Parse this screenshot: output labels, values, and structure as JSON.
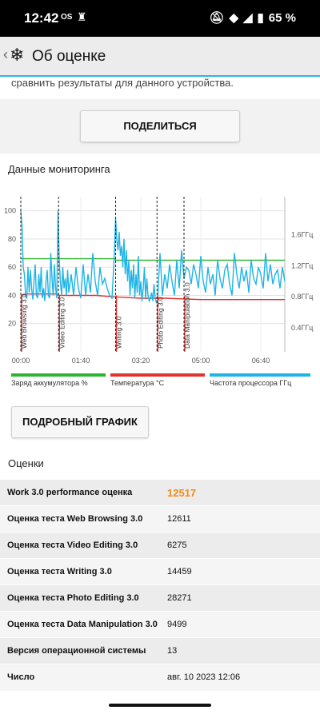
{
  "statusbar": {
    "time": "12:42",
    "os": "OS",
    "battery": "65 %"
  },
  "appbar": {
    "back": "‹",
    "logo": "❄",
    "title": "Об оценке"
  },
  "intro": "сравнить результаты для данного устройства.",
  "share_label": "ПОДЕЛИТЬСЯ",
  "monitoring_title": "Данные мониторинга",
  "chart_data": {
    "type": "line",
    "x_ticks": [
      "00:00",
      "01:40",
      "03:20",
      "05:00",
      "06:40"
    ],
    "y_left_ticks": [
      20,
      40,
      60,
      80,
      100
    ],
    "y_right_ticks": [
      "0.4ГГц",
      "0.8ГГц",
      "1.2ГГц",
      "1.6ГГц"
    ],
    "xlim_seconds": [
      0,
      440
    ],
    "ylim": [
      0,
      110
    ],
    "phases": [
      {
        "label": "Web Browsing 3.0",
        "t": 0
      },
      {
        "label": "Video Editing 3.0",
        "t": 63
      },
      {
        "label": "Writing 3.0",
        "t": 158
      },
      {
        "label": "Photo Editing 3.0",
        "t": 227
      },
      {
        "label": "Data Manipulation 3.0",
        "t": 272
      }
    ],
    "series": [
      {
        "name": "Заряд аккумулятора %",
        "color": "#2db52d",
        "x": [
          0,
          157,
          158,
          440
        ],
        "y": [
          66,
          66,
          65,
          65
        ]
      },
      {
        "name": "Температура °C",
        "color": "#e0322f",
        "x": [
          0,
          10,
          60,
          63,
          125,
          155,
          200,
          240,
          300,
          440
        ],
        "y": [
          40,
          41,
          41,
          40,
          40,
          39,
          38,
          38,
          37,
          37
        ]
      },
      {
        "name": "Частота процессора ГГц",
        "color": "#1fb4e6",
        "x": [
          0,
          2,
          4,
          6,
          8,
          10,
          12,
          14,
          16,
          18,
          20,
          22,
          24,
          26,
          28,
          30,
          32,
          34,
          36,
          38,
          40,
          42,
          44,
          46,
          48,
          50,
          52,
          54,
          56,
          58,
          60,
          62,
          64,
          66,
          68,
          70,
          72,
          74,
          76,
          78,
          80,
          84,
          88,
          92,
          96,
          100,
          104,
          108,
          112,
          116,
          120,
          124,
          128,
          132,
          136,
          140,
          144,
          148,
          152,
          156,
          158,
          160,
          162,
          164,
          166,
          168,
          170,
          172,
          174,
          176,
          178,
          180,
          182,
          184,
          186,
          188,
          190,
          192,
          194,
          196,
          198,
          200,
          202,
          204,
          206,
          208,
          210,
          212,
          214,
          216,
          218,
          220,
          222,
          224,
          226,
          228,
          232,
          236,
          240,
          244,
          248,
          252,
          256,
          260,
          264,
          268,
          272,
          276,
          280,
          284,
          288,
          292,
          296,
          300,
          304,
          308,
          312,
          316,
          320,
          324,
          328,
          332,
          336,
          340,
          344,
          348,
          352,
          356,
          360,
          364,
          368,
          372,
          376,
          380,
          384,
          388,
          392,
          396,
          400,
          404,
          408,
          412,
          416,
          420,
          424,
          428,
          432,
          436,
          440
        ],
        "y": [
          100,
          90,
          60,
          55,
          40,
          38,
          60,
          42,
          58,
          45,
          37,
          50,
          62,
          40,
          38,
          55,
          42,
          60,
          38,
          45,
          36,
          50,
          58,
          40,
          38,
          70,
          52,
          40,
          62,
          45,
          38,
          100,
          65,
          50,
          40,
          60,
          45,
          52,
          40,
          58,
          42,
          55,
          40,
          60,
          45,
          38,
          62,
          40,
          55,
          42,
          70,
          50,
          40,
          60,
          48,
          52,
          45,
          40,
          38,
          70,
          95,
          80,
          72,
          85,
          68,
          75,
          60,
          80,
          55,
          72,
          50,
          65,
          40,
          58,
          45,
          62,
          38,
          55,
          42,
          68,
          40,
          50,
          36,
          45,
          60,
          38,
          52,
          40,
          36,
          38,
          42,
          36,
          48,
          38,
          35,
          36,
          70,
          40,
          55,
          45,
          62,
          50,
          40,
          65,
          45,
          72,
          52,
          60,
          58,
          48,
          62,
          55,
          45,
          68,
          50,
          42,
          60,
          48,
          55,
          40,
          65,
          52,
          45,
          58,
          62,
          48,
          40,
          70,
          55,
          45,
          60,
          50,
          58,
          42,
          65,
          52,
          48,
          60,
          55,
          45,
          70,
          50,
          62,
          48,
          55,
          58,
          45,
          60,
          50
        ]
      }
    ]
  },
  "legend": [
    {
      "label": "Заряд аккумулятора %",
      "color": "#2db52d"
    },
    {
      "label": "Температура °C",
      "color": "#e0322f"
    },
    {
      "label": "Частота процессора ГГц",
      "color": "#1fb4e6"
    }
  ],
  "detail_label": "ПОДРОБНЫЙ ГРАФИК",
  "scores_title": "Оценки",
  "scores": [
    {
      "key": "Work 3.0 performance оценка",
      "value": "12517"
    },
    {
      "key": "Оценка теста Web Browsing 3.0",
      "value": "12611"
    },
    {
      "key": "Оценка теста Video Editing 3.0",
      "value": "6275"
    },
    {
      "key": "Оценка теста Writing 3.0",
      "value": "14459"
    },
    {
      "key": "Оценка теста Photo Editing 3.0",
      "value": "28271"
    },
    {
      "key": "Оценка теста Data Manipulation 3.0",
      "value": "9499"
    },
    {
      "key": "Версия операционной системы",
      "value": "13"
    },
    {
      "key": "Число",
      "value": "авг. 10 2023 12:06"
    }
  ]
}
